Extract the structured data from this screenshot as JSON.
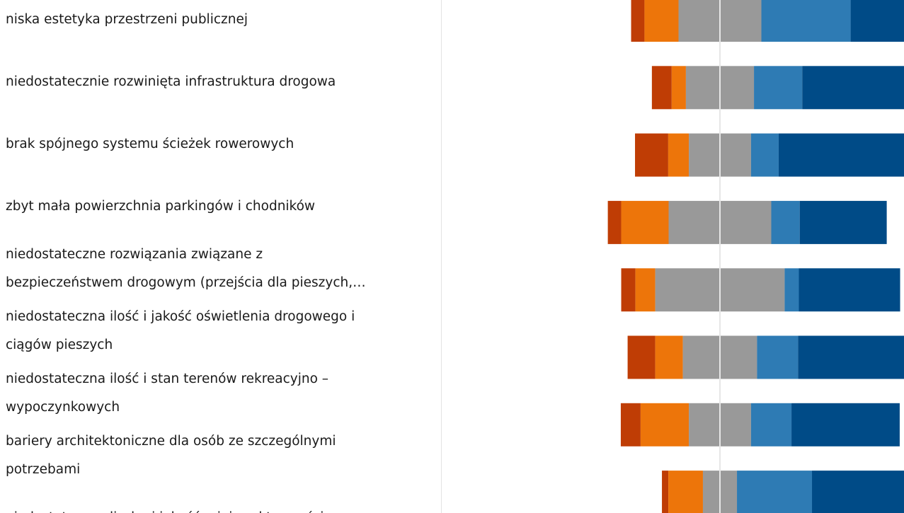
{
  "chart_data": {
    "type": "diverging-bar",
    "categories": [
      "niska estetyka przestrzeni publicznej",
      "niedostatecznie rozwinięta infrastruktura drogowa",
      "brak spójnego systemu ścieżek rowerowych",
      "zbyt mała powierzchnia parkingów i chodników",
      "niedostateczne rozwiązania związane z\nbezpieczeństwem drogowym (przejścia dla pieszych,…",
      "niedostateczna ilość i jakość oświetlenia drogowego i\nciągów pieszych",
      "niedostateczna ilość i stan terenów rekreacyjno –\nwypoczynkowych",
      "bariery architektoniczne dla osób ze szczególnymi\npotrzebami",
      "niedostateczna liczba i jakość miejsc aktywności"
    ],
    "series": [
      {
        "color": "#bf3d05",
        "values": [
          4.8,
          7.1,
          11.9,
          4.8,
          5.1,
          9.9,
          7.1,
          2.3,
          null
        ]
      },
      {
        "color": "#ed750a",
        "values": [
          12.2,
          5.1,
          7.4,
          17.0,
          7.1,
          9.9,
          17.3,
          12.4,
          null
        ]
      },
      {
        "color": "#999999",
        "values": [
          29.7,
          24.4,
          22.3,
          36.8,
          46.4,
          26.6,
          22.3,
          12.2,
          null
        ]
      },
      {
        "color": "#2e7bb4",
        "values": [
          32.0,
          17.3,
          9.9,
          10.2,
          5.1,
          14.7,
          14.5,
          26.9,
          null
        ]
      },
      {
        "color": "#004b87",
        "values": [
          21.3,
          46.1,
          48.5,
          31.2,
          36.3,
          38.9,
          38.8,
          46.2,
          null
        ]
      }
    ]
  }
}
